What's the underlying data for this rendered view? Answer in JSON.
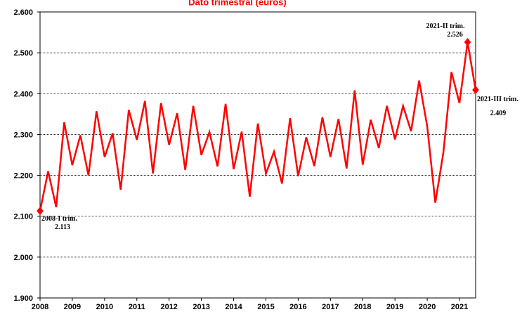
{
  "chart_data": {
    "type": "line",
    "title": "Dato trimestral (euros)",
    "x": [
      2008,
      2008.25,
      2008.5,
      2008.75,
      2009,
      2009.25,
      2009.5,
      2009.75,
      2010,
      2010.25,
      2010.5,
      2010.75,
      2011,
      2011.25,
      2011.5,
      2011.75,
      2012,
      2012.25,
      2012.5,
      2012.75,
      2013,
      2013.25,
      2013.5,
      2013.75,
      2014,
      2014.25,
      2014.5,
      2014.75,
      2015,
      2015.25,
      2015.5,
      2015.75,
      2016,
      2016.25,
      2016.5,
      2016.75,
      2017,
      2017.25,
      2017.5,
      2017.75,
      2018,
      2018.25,
      2018.5,
      2018.75,
      2019,
      2019.25,
      2019.5,
      2019.75,
      2020,
      2020.25,
      2020.5,
      2020.75,
      2021,
      2021.25,
      2021.5
    ],
    "series": [
      {
        "name": "Dato trimestral",
        "color": "#ff0000",
        "values": [
          2113,
          2210,
          2122,
          2330,
          2225,
          2298,
          2200,
          2357,
          2245,
          2303,
          2165,
          2360,
          2287,
          2382,
          2205,
          2377,
          2275,
          2352,
          2213,
          2370,
          2250,
          2306,
          2222,
          2375,
          2215,
          2307,
          2148,
          2327,
          2204,
          2258,
          2180,
          2340,
          2198,
          2293,
          2223,
          2342,
          2245,
          2338,
          2217,
          2408,
          2226,
          2336,
          2267,
          2370,
          2288,
          2370,
          2308,
          2432,
          2320,
          2133,
          2256,
          2453,
          2377,
          2526,
          2409
        ]
      }
    ],
    "xlim": [
      2008,
      2021.5
    ],
    "xticks": [
      2008,
      2009,
      2010,
      2011,
      2012,
      2013,
      2014,
      2015,
      2016,
      2017,
      2018,
      2019,
      2020,
      2021
    ],
    "ylim": [
      1900,
      2600
    ],
    "yticks": [
      {
        "value": 1900,
        "label": "1.900"
      },
      {
        "value": 2000,
        "label": "2.000"
      },
      {
        "value": 2100,
        "label": "2.100"
      },
      {
        "value": 2200,
        "label": "2.200"
      },
      {
        "value": 2300,
        "label": "2.300"
      },
      {
        "value": 2400,
        "label": "2.400"
      },
      {
        "value": 2500,
        "label": "2.500"
      },
      {
        "value": 2600,
        "label": "2.600"
      }
    ],
    "grid": true,
    "annotations": [
      {
        "x": 2008,
        "label": "2008-I trim.",
        "value_label": "2.113"
      },
      {
        "x": 2021.25,
        "label": "2021-II trim.",
        "value_label": "2.526"
      },
      {
        "x": 2021.5,
        "label": "2021-III trim.",
        "value_label": "2.409"
      }
    ]
  }
}
